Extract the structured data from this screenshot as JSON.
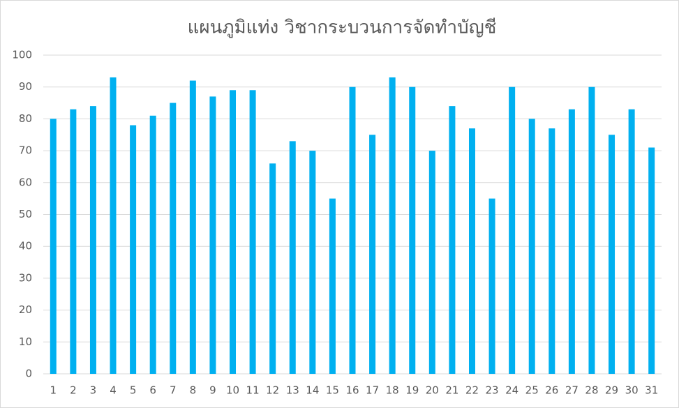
{
  "chart_data": {
    "type": "bar",
    "title": "แผนภูมิแท่ง วิชากระบวนการจัดทำบัญชี",
    "categories": [
      "1",
      "2",
      "3",
      "4",
      "5",
      "6",
      "7",
      "8",
      "9",
      "10",
      "11",
      "12",
      "13",
      "14",
      "15",
      "16",
      "17",
      "18",
      "19",
      "20",
      "21",
      "22",
      "23",
      "24",
      "25",
      "26",
      "27",
      "28",
      "29",
      "30",
      "31"
    ],
    "values": [
      80,
      83,
      84,
      93,
      78,
      81,
      85,
      92,
      87,
      89,
      89,
      66,
      73,
      70,
      55,
      90,
      75,
      93,
      90,
      70,
      84,
      77,
      55,
      90,
      80,
      77,
      83,
      90,
      75,
      83,
      71
    ],
    "color": "#00b0f0",
    "ylim": [
      0,
      100
    ],
    "yticks": [
      0,
      10,
      20,
      30,
      40,
      50,
      60,
      70,
      80,
      90,
      100
    ],
    "grid": true
  }
}
